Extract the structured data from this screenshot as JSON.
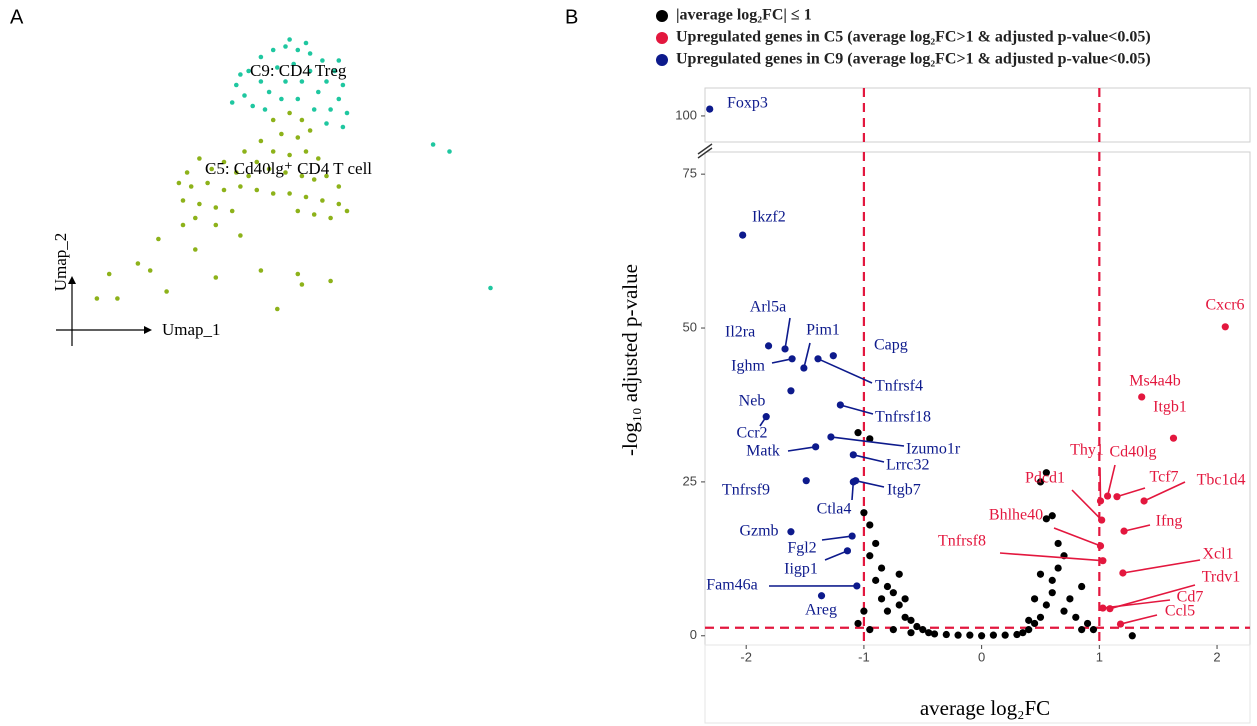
{
  "chart_data": [
    {
      "type": "umap",
      "panel_label": "A",
      "x_label": "Umap_1",
      "y_label": "Umap_2",
      "xlim": [
        0,
        11
      ],
      "ylim": [
        0,
        10.5
      ],
      "series": [
        {
          "name": "C9: CD4 Treg",
          "color": "#1fc7a0",
          "x": [
            4.3,
            4.6,
            4.9,
            5.2,
            5.5,
            5.8,
            6.1,
            6.4,
            6.7,
            6.9,
            4.5,
            4.9,
            5.3,
            5.7,
            6.1,
            6.5,
            6.8,
            4.2,
            4.7,
            5.1,
            5.5,
            5.9,
            6.3,
            6.6,
            7.0,
            5.0,
            5.4,
            5.8,
            6.2,
            6.5,
            6.9,
            5.6,
            6.0,
            4.4,
            6.8,
            9.1,
            9.5,
            10.5
          ],
          "values": [
            9.0,
            9.4,
            9.8,
            10.0,
            10.1,
            10.0,
            9.9,
            9.7,
            9.4,
            9.0,
            8.7,
            9.1,
            9.5,
            9.6,
            9.4,
            9.1,
            8.6,
            8.5,
            8.4,
            8.8,
            9.1,
            9.1,
            8.8,
            8.3,
            8.2,
            8.3,
            8.6,
            8.6,
            8.3,
            7.9,
            7.8,
            10.3,
            10.2,
            9.3,
            9.7,
            7.3,
            7.1,
            3.2
          ]
        },
        {
          "name": "C5: Cd40lg⁺ CD4 T cell",
          "color": "#8db21a",
          "x": [
            5.2,
            5.6,
            5.9,
            5.4,
            5.8,
            6.1,
            4.9,
            5.2,
            5.6,
            6.0,
            6.3,
            4.5,
            4.8,
            5.1,
            5.5,
            5.9,
            6.2,
            6.5,
            6.8,
            4.0,
            4.3,
            3.7,
            3.4,
            3.1,
            2.9,
            3.2,
            3.6,
            4.0,
            4.4,
            4.8,
            5.2,
            5.6,
            6.0,
            6.4,
            6.8,
            7.0,
            3.0,
            3.4,
            3.8,
            4.2,
            5.8,
            6.2,
            6.6,
            3.3,
            3.8,
            4.4,
            2.4,
            3.3,
            1.9,
            2.2,
            1.2,
            2.6,
            1.4,
            0.9,
            3.8,
            4.9,
            5.8,
            5.9,
            6.6,
            5.3,
            3.0,
            4.6
          ],
          "values": [
            8.0,
            8.2,
            8.0,
            7.6,
            7.5,
            7.7,
            7.4,
            7.1,
            7.0,
            7.1,
            6.9,
            7.1,
            6.8,
            6.6,
            6.5,
            6.4,
            6.3,
            6.4,
            6.1,
            6.8,
            6.5,
            6.6,
            6.9,
            6.5,
            6.2,
            6.1,
            6.2,
            6.0,
            6.1,
            6.0,
            5.9,
            5.9,
            5.8,
            5.7,
            5.6,
            5.4,
            5.7,
            5.6,
            5.5,
            5.4,
            5.4,
            5.3,
            5.2,
            5.2,
            5.0,
            4.7,
            4.6,
            4.3,
            3.9,
            3.7,
            3.6,
            3.1,
            2.9,
            2.9,
            3.5,
            3.7,
            3.6,
            3.3,
            3.4,
            2.6,
            5.0,
            6.4
          ]
        }
      ]
    },
    {
      "type": "volcano",
      "panel_label": "B",
      "x_label": "average log₂FC",
      "y_label": "-log₁₀ adjusted p-value",
      "xlim": [
        -2.35,
        2.28
      ],
      "xticks": [
        -2,
        -1,
        0,
        1,
        2
      ],
      "ylim": [
        -1.5,
        78.6
      ],
      "yticks": [
        0,
        25,
        50,
        75
      ],
      "ylim_upper": [
        95.8,
        104.5
      ],
      "yticks_upper": [
        100
      ],
      "thresholds_x": [
        -1,
        1
      ],
      "threshold_y": 1.3,
      "threshold_color": "#e3173e",
      "series": [
        {
          "name": "|average log₂FC| ≤ 1",
          "color": "#000000",
          "x": [
            -1.05,
            -0.95,
            -1.0,
            -0.95,
            -0.9,
            -0.95,
            -0.85,
            -0.9,
            -0.8,
            -0.85,
            -0.75,
            -0.7,
            -0.8,
            -0.65,
            -0.6,
            -0.55,
            -0.5,
            -0.45,
            -0.4,
            -0.3,
            -0.2,
            -0.1,
            0,
            0.1,
            0.2,
            0.3,
            0.35,
            0.4,
            0.45,
            0.5,
            0.55,
            0.6,
            0.6,
            0.65,
            0.55,
            0.6,
            0.5,
            0.55,
            0.7,
            0.75,
            0.8,
            0.85,
            0.9,
            0.7,
            0.65,
            -0.95,
            -0.6,
            0.95,
            1.28,
            -1.05,
            -0.75,
            0.85,
            0.4,
            0.45,
            0.5,
            -0.7,
            -0.65,
            -1.0
          ],
          "values": [
            33,
            32,
            20,
            18,
            15,
            13,
            11,
            9,
            8,
            6,
            7,
            5,
            4,
            3,
            2.5,
            1.5,
            1,
            0.5,
            0.3,
            0.2,
            0.1,
            0.1,
            0,
            0.1,
            0.1,
            0.2,
            0.5,
            1,
            2,
            3,
            5,
            7,
            9,
            11,
            19,
            19.5,
            25,
            26.5,
            4,
            6,
            3,
            8,
            2,
            13,
            15,
            1,
            0.5,
            1,
            0,
            2,
            1,
            1,
            2.5,
            6,
            10,
            10,
            6,
            4
          ]
        },
        {
          "name": "Upregulated genes in C5 (average log₂FC>1 & adjusted p-value<0.05)",
          "color": "#e3173e",
          "labels": [
            "Cxcr6",
            "Ms4a4b",
            "Itgb1",
            "Thy1",
            "Cd40lg",
            "Tcf7",
            "Tbc1d4",
            "Pdcd1",
            "Bhlhe40",
            "Ifng",
            "Xcl1",
            "Tnfrsf8",
            "Cd7",
            "Trdv1",
            "Ccl5"
          ],
          "x": [
            2.07,
            1.36,
            1.63,
            1.01,
            1.07,
            1.15,
            1.38,
            1.02,
            1.01,
            1.21,
            1.2,
            1.03,
            1.03,
            1.09,
            1.18
          ],
          "values": [
            50.2,
            38.8,
            32.1,
            21.9,
            22.7,
            22.6,
            21.9,
            18.8,
            14.6,
            17,
            10.2,
            12.2,
            4.5,
            4.4,
            1.9
          ]
        },
        {
          "name": "Upregulated genes in C9 (average log₂FC>1 & adjusted p-value<0.05)",
          "color": "#0d1a8c",
          "labels": [
            "Foxp3",
            "Ikzf2",
            "Il2ra",
            "Arl5a",
            "Ighm",
            "Pim1",
            "Capg",
            "Tnfrsf4",
            "Neb",
            "Tnfrsf18",
            "Ccr2",
            "Izumo1r",
            "Matk",
            "Lrrc32",
            "Tnfrsf9",
            "Itgb7",
            "Ctla4",
            "Gzmb",
            "Fgl2",
            "Iigp1",
            "Fam46a",
            "Areg"
          ],
          "x": [
            -2.31,
            -2.03,
            -1.81,
            -1.67,
            -1.61,
            -1.51,
            -1.26,
            -1.39,
            -1.62,
            -1.2,
            -1.83,
            -1.28,
            -1.41,
            -1.09,
            -1.49,
            -1.07,
            -1.09,
            -1.62,
            -1.1,
            -1.14,
            -1.06,
            -1.36
          ],
          "values": [
            101.1,
            65.1,
            47.1,
            46.6,
            45,
            43.5,
            45.5,
            45,
            39.8,
            37.5,
            35.6,
            32.3,
            30.7,
            29.4,
            25.2,
            25.2,
            25,
            16.9,
            16.2,
            13.8,
            8.1,
            6.5
          ]
        }
      ]
    }
  ]
}
